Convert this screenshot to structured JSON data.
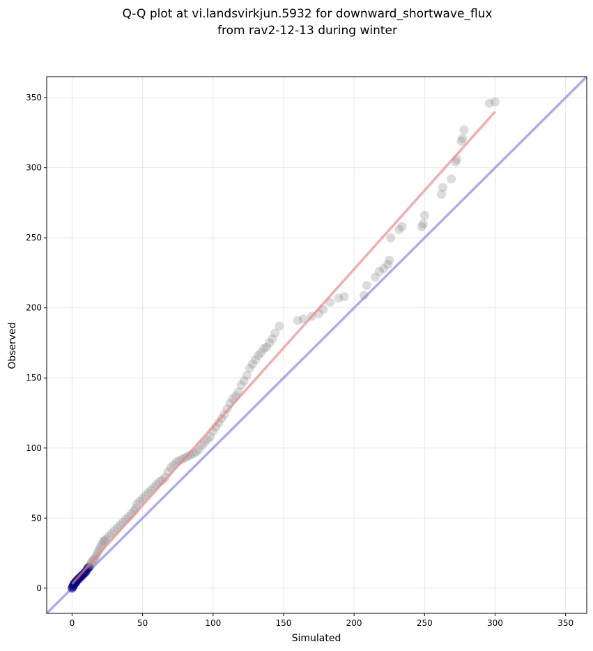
{
  "chart_data": {
    "type": "scatter",
    "title_line1": "Q-Q plot at vi.landsvirkjun.5932 for downward_shortwave_flux",
    "title_line2": "from rav2-12-13 during winter",
    "xlabel": "Simulated",
    "ylabel": "Observed",
    "xlim": [
      -18,
      365
    ],
    "ylim": [
      -18,
      365
    ],
    "xticks": [
      0,
      50,
      100,
      150,
      200,
      250,
      300,
      350
    ],
    "yticks": [
      0,
      50,
      100,
      150,
      200,
      250,
      300,
      350
    ],
    "grid": true,
    "colors": {
      "points": "#808080",
      "fit_line": "#f08080",
      "identity_line": "#8080f0",
      "low_points": "#000080"
    },
    "identity_line": {
      "x": [
        -18,
        365
      ],
      "y": [
        -18,
        365
      ]
    },
    "fit_line": {
      "x": [
        0,
        300
      ],
      "y": [
        3,
        340
      ]
    },
    "points": {
      "x": [
        0,
        0.5,
        1,
        1.5,
        2,
        2.5,
        3,
        4,
        5,
        6,
        7,
        8,
        9,
        10,
        11,
        12,
        13,
        14,
        15,
        16,
        17,
        18,
        19,
        20,
        21,
        22,
        23,
        24,
        26,
        28,
        30,
        32,
        34,
        36,
        38,
        40,
        42,
        44,
        45,
        46,
        48,
        50,
        52,
        54,
        56,
        58,
        60,
        62,
        64,
        66,
        68,
        70,
        72,
        74,
        76,
        78,
        80,
        82,
        84,
        86,
        88,
        90,
        92,
        94,
        96,
        98,
        100,
        102,
        104,
        106,
        108,
        110,
        112,
        114,
        116,
        118,
        120,
        122,
        124,
        126,
        128,
        130,
        132,
        134,
        136,
        138,
        140,
        142,
        144,
        147,
        160,
        164,
        170,
        175,
        178,
        183,
        189,
        193,
        207,
        209,
        215,
        218,
        221,
        224,
        225,
        226,
        232,
        234,
        248,
        249,
        250,
        262,
        263,
        269,
        272,
        273,
        276,
        277,
        278,
        296,
        300
      ],
      "y": [
        0,
        1,
        2,
        3,
        3.5,
        4,
        5,
        6,
        7,
        8,
        9,
        10,
        11,
        12,
        14,
        15,
        17,
        19,
        20,
        21,
        23,
        25,
        27,
        29,
        31,
        33,
        34,
        35,
        37,
        39,
        41,
        43,
        45,
        47,
        49,
        51,
        53,
        55,
        57,
        60,
        62,
        64,
        66,
        68,
        70,
        72,
        74,
        76,
        77,
        79,
        83,
        86,
        88,
        90,
        91,
        92,
        93,
        94,
        95,
        96,
        97,
        99,
        102,
        104,
        106,
        108,
        112,
        115,
        118,
        121,
        124,
        128,
        132,
        135,
        137,
        140,
        145,
        148,
        152,
        157,
        160,
        163,
        166,
        168,
        171,
        172,
        175,
        178,
        182,
        187,
        191,
        192,
        194,
        196,
        199,
        204,
        207,
        208,
        209,
        216,
        222,
        226,
        228,
        231,
        234,
        250,
        256,
        258,
        258,
        260,
        266,
        281,
        286,
        292,
        304,
        306,
        319,
        321,
        327,
        346,
        347
      ]
    }
  }
}
